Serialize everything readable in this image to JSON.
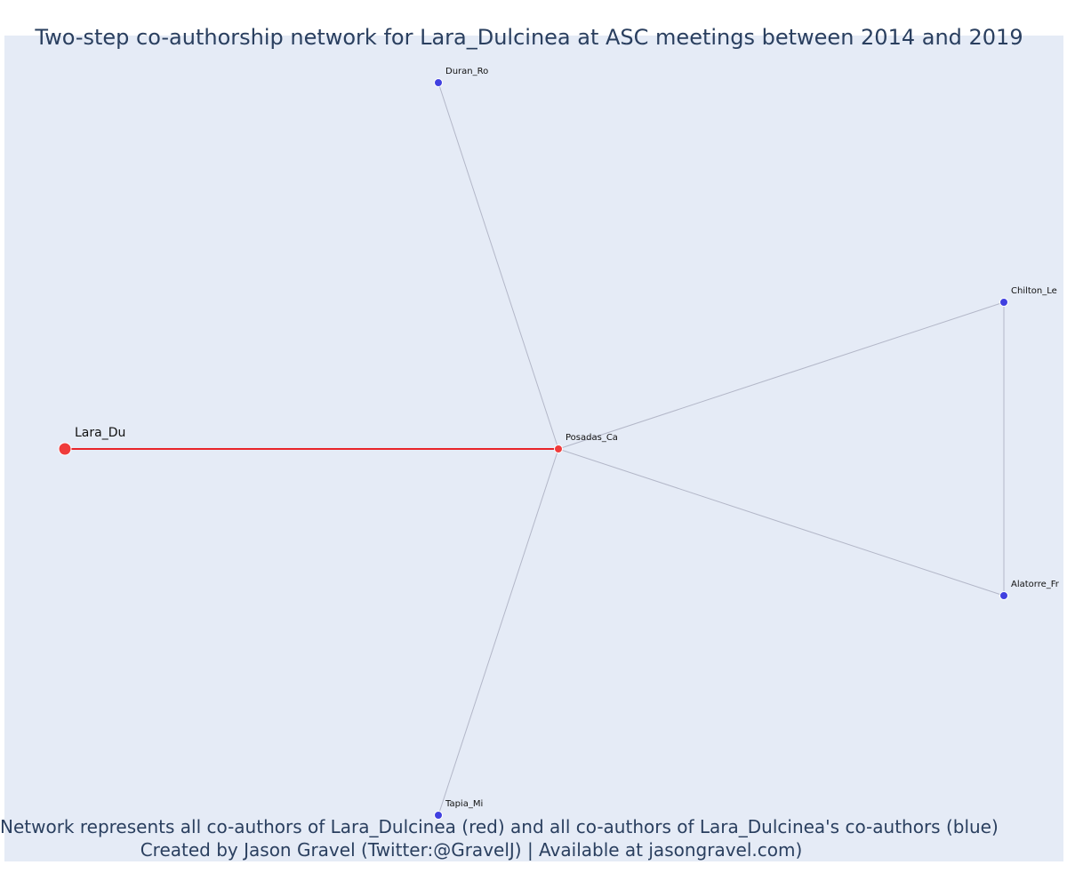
{
  "title": "Two-step co-authorship network for Lara_Dulcinea at ASC meetings between 2014 and 2019",
  "captions": {
    "line1": "Network represents all co-authors of Lara_Dulcinea (red) and all co-authors of Lara_Dulcinea's co-authors (blue)",
    "line2": "Created by Jason Gravel (Twitter:@GravelJ) | Available at jasongravel.com)"
  },
  "colors": {
    "background": "#e5ebf6",
    "focal_node": "#ef3b3b",
    "coauthor_node": "#4040e0",
    "focal_edge": "#e8242a",
    "other_edge": "#b3b7c8",
    "text": "#2a3f5f"
  },
  "nodes": [
    {
      "id": "lara",
      "label": "Lara_Du",
      "group": "focal"
    },
    {
      "id": "posadas",
      "label": "Posadas_Ca",
      "group": "direct"
    },
    {
      "id": "duran",
      "label": "Duran_Ro",
      "group": "second"
    },
    {
      "id": "chilton",
      "label": "Chilton_Le",
      "group": "second"
    },
    {
      "id": "alatorre",
      "label": "Alatorre_Fr",
      "group": "second"
    },
    {
      "id": "tapia",
      "label": "Tapia_Mi",
      "group": "second"
    }
  ],
  "edges": [
    {
      "source": "lara",
      "target": "posadas",
      "type": "focal"
    },
    {
      "source": "posadas",
      "target": "duran",
      "type": "other"
    },
    {
      "source": "posadas",
      "target": "chilton",
      "type": "other"
    },
    {
      "source": "posadas",
      "target": "alatorre",
      "type": "other"
    },
    {
      "source": "posadas",
      "target": "tapia",
      "type": "other"
    },
    {
      "source": "chilton",
      "target": "alatorre",
      "type": "other"
    }
  ]
}
